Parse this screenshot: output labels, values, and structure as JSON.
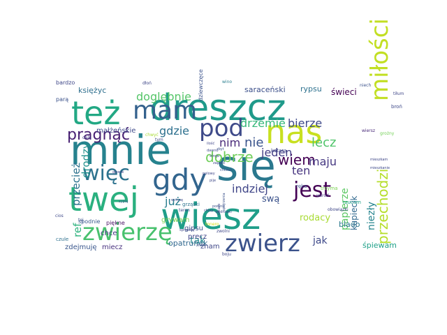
{
  "title": "Word cloud",
  "words": [
    {
      "text": "się",
      "color": "#2a788e"
    },
    {
      "text": "mnie",
      "color": "#26828e"
    },
    {
      "text": "wiesz",
      "color": "#1f9e89"
    },
    {
      "text": "twej",
      "color": "#2ab07f"
    },
    {
      "text": "dreszcz",
      "color": "#1f9a8a"
    },
    {
      "text": "nas",
      "color": "#c8e020"
    },
    {
      "text": "miłości",
      "color": "#c2df23"
    },
    {
      "text": "gdy",
      "color": "#32658e"
    },
    {
      "text": "mam",
      "color": "#34618d"
    },
    {
      "text": "też",
      "color": "#22a884"
    },
    {
      "text": "pod",
      "color": "#3e4a89"
    },
    {
      "text": "jest",
      "color": "#440154"
    },
    {
      "text": "zwierz",
      "color": "#3b528b"
    },
    {
      "text": "zwierzę",
      "color": "#48c16e"
    },
    {
      "text": "więc",
      "color": "#2c728e"
    },
    {
      "text": "pragnąć",
      "color": "#482173"
    },
    {
      "text": "dobrze",
      "color": "#6ece58"
    },
    {
      "text": "nie",
      "color": "#3a548c"
    },
    {
      "text": "wiem",
      "color": "#440154"
    },
    {
      "text": "przechodzi",
      "color": "#b5de2b"
    },
    {
      "text": "maju",
      "color": "#453781"
    },
    {
      "text": "jeden",
      "color": "#433e85"
    },
    {
      "text": "lecz",
      "color": "#50c46a"
    },
    {
      "text": "ten",
      "color": "#46337f"
    },
    {
      "text": "indziej",
      "color": "#404688"
    },
    {
      "text": "drzemie",
      "color": "#35b779"
    },
    {
      "text": "bierze",
      "color": "#3e4989"
    },
    {
      "text": "gdzie",
      "color": "#2d708e"
    },
    {
      "text": "doglębnie",
      "color": "#54c568"
    },
    {
      "text": "księżyc",
      "color": "#2e6f8e"
    },
    {
      "text": "saraceński",
      "color": "#3c4f8a"
    },
    {
      "text": "rypsu",
      "color": "#2d718e"
    },
    {
      "text": "świeci",
      "color": "#440154"
    },
    {
      "text": "nim",
      "color": "#482878"
    },
    {
      "text": "już",
      "color": "#287d8e"
    },
    {
      "text": "swą",
      "color": "#3b528b"
    },
    {
      "text": "rodacy",
      "color": "#a8db34"
    },
    {
      "text": "papierze",
      "color": "#5cc863"
    },
    {
      "text": "przecież",
      "color": "#2c728e"
    },
    {
      "text": "drodzy",
      "color": "#21918c"
    },
    {
      "text": "ref",
      "color": "#2db27d"
    },
    {
      "text": "tak",
      "color": "#238a8d"
    },
    {
      "text": "jak",
      "color": "#3e4989"
    },
    {
      "text": "niezły",
      "color": "#25848e"
    },
    {
      "text": "blado",
      "color": "#2a788e"
    },
    {
      "text": "śpiewam",
      "color": "#1fa088"
    },
    {
      "text": "kupiecik",
      "color": "#31688e"
    },
    {
      "text": "opatrunek",
      "color": "#31688e"
    },
    {
      "text": "zdejmuję",
      "color": "#39568c"
    },
    {
      "text": "miecz",
      "color": "#46307e"
    },
    {
      "text": "chce",
      "color": "#453581"
    },
    {
      "text": "znam",
      "color": "#3f4788"
    },
    {
      "text": "precz",
      "color": "#404588"
    },
    {
      "text": "gipsu",
      "color": "#3b528b"
    },
    {
      "text": "grywam",
      "color": "#7ad151"
    },
    {
      "text": "małżeńskie",
      "color": "#3e4989"
    },
    {
      "text": "bardzo",
      "color": "#3f4788"
    },
    {
      "text": "parą",
      "color": "#3b528b"
    },
    {
      "text": "czule",
      "color": "#2d708e"
    },
    {
      "text": "spodnie",
      "color": "#38598c"
    },
    {
      "text": "piękne",
      "color": "#471063"
    },
    {
      "text": "tiłum",
      "color": "#3f4788"
    },
    {
      "text": "broń",
      "color": "#3e4989"
    },
    {
      "text": "niech",
      "color": "#3b528b"
    },
    {
      "text": "wino",
      "color": "#287d8e"
    },
    {
      "text": "dłoń",
      "color": "#3f4788"
    },
    {
      "text": "ręka",
      "color": "#3b528b"
    },
    {
      "text": "trzyma",
      "color": "#7ad151"
    },
    {
      "text": "wśród",
      "color": "#453781"
    },
    {
      "text": "rzucam",
      "color": "#1fa188"
    },
    {
      "text": "obowiązki",
      "color": "#3f4788"
    },
    {
      "text": "kotarą",
      "color": "#3e4989"
    },
    {
      "text": "grząski",
      "color": "#2c728e"
    },
    {
      "text": "tonero",
      "color": "#d8e219"
    },
    {
      "text": "dala",
      "color": "#433e85"
    },
    {
      "text": "tym",
      "color": "#3f4788"
    },
    {
      "text": "chwyć",
      "color": "#a8db34"
    },
    {
      "text": "cios",
      "color": "#3e4989"
    },
    {
      "text": "tej",
      "color": "#3b528b"
    },
    {
      "text": "boju",
      "color": "#3f4788"
    },
    {
      "text": "dziewczęce",
      "color": "#3b528b"
    },
    {
      "text": "mieszkam",
      "color": "#3f4788"
    },
    {
      "text": "mieszkanie",
      "color": "#3e4989"
    },
    {
      "text": "wiersz",
      "color": "#482878"
    },
    {
      "text": "grożny",
      "color": "#73d056"
    },
    {
      "text": "głowie",
      "color": "#3f4788"
    },
    {
      "text": "śmiało",
      "color": "#3e4989"
    },
    {
      "text": "spojrzenia",
      "color": "#3b528b"
    },
    {
      "text": "ilość",
      "color": "#3f4788"
    },
    {
      "text": "dawno",
      "color": "#3e4989"
    },
    {
      "text": "zbyt",
      "color": "#3b528b"
    },
    {
      "text": "stroje",
      "color": "#3f4788"
    },
    {
      "text": "zapalić",
      "color": "#3e4989"
    },
    {
      "text": "chcesz",
      "color": "#3b528b"
    },
    {
      "text": "polowy",
      "color": "#3f4788"
    },
    {
      "text": "pije",
      "color": "#3e4989"
    },
    {
      "text": "sypią",
      "color": "#3b528b"
    },
    {
      "text": "wcisnę",
      "color": "#3f4788"
    },
    {
      "text": "chłop",
      "color": "#3e4989"
    },
    {
      "text": "pomnij",
      "color": "#3b528b"
    },
    {
      "text": "zwolni",
      "color": "#3f4788"
    },
    {
      "text": "teren",
      "color": "#3e4989"
    },
    {
      "text": "znoś",
      "color": "#3b528b"
    },
    {
      "text": "sprzedaj",
      "color": "#3f4788"
    },
    {
      "text": "wędrówki",
      "color": "#3e4989"
    }
  ]
}
